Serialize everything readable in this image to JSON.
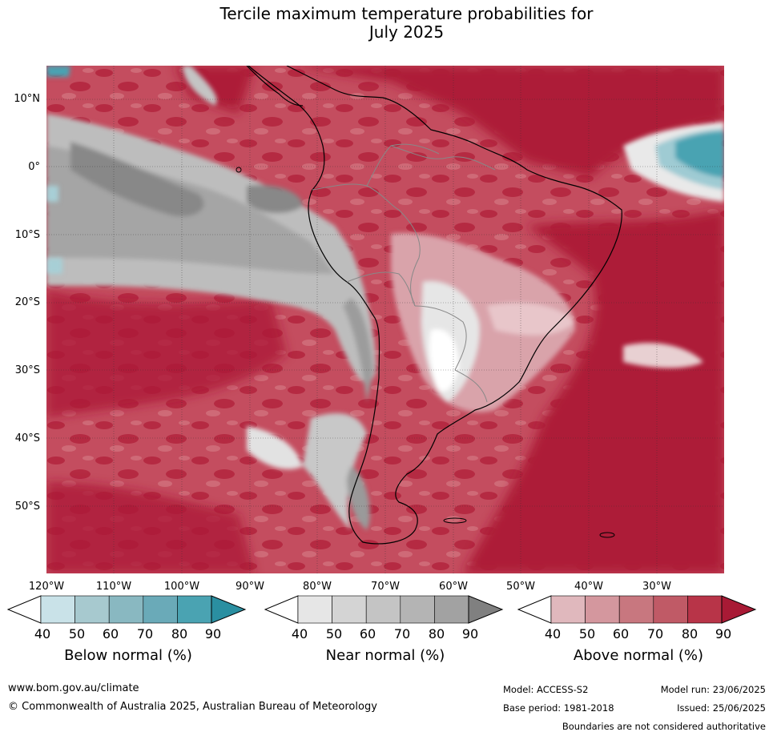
{
  "title": {
    "line1": "Tercile maximum temperature probabilities for",
    "line2": "July 2025"
  },
  "map": {
    "lat_labels": [
      "10°N",
      "0°",
      "10°S",
      "20°S",
      "30°S",
      "40°S",
      "50°S"
    ],
    "lon_labels": [
      "120°W",
      "110°W",
      "100°W",
      "90°W",
      "80°W",
      "70°W",
      "60°W",
      "50°W",
      "40°W",
      "30°W"
    ],
    "gridlines": true,
    "dominant_category": "Above normal",
    "below_normal_regions": [
      "North-east tropical Atlantic near equator",
      "Far north-west Pacific corner"
    ],
    "near_normal_regions": [
      "Eastern equatorial/south-east Pacific band",
      "Peru-Chile coast",
      "Southern Andes / Patagonia"
    ]
  },
  "legend": {
    "ticks": [
      "40",
      "50",
      "60",
      "70",
      "80",
      "90"
    ],
    "below": {
      "title": "Below normal (%)",
      "colors": [
        "#ffffff",
        "#c9e2e8",
        "#a7c9cf",
        "#89b8c1",
        "#6aaab8",
        "#4aa3b2",
        "#2a8fa1"
      ]
    },
    "near": {
      "title": "Near normal (%)",
      "colors": [
        "#ffffff",
        "#e6e6e6",
        "#d4d4d4",
        "#c4c4c4",
        "#b4b4b4",
        "#a2a2a2",
        "#808080"
      ]
    },
    "above": {
      "title": "Above normal (%)",
      "colors": [
        "#ffffff",
        "#e0b8bd",
        "#d4979e",
        "#c8777f",
        "#c05a66",
        "#b83448",
        "#a81a35"
      ]
    }
  },
  "footer": {
    "url": "www.bom.gov.au/climate",
    "copyright": "© Commonwealth of Australia 2025, Australian Bureau of Meteorology",
    "model": "Model: ACCESS-S2",
    "base_period": "Base period: 1981-2018",
    "model_run": "Model run: 23/06/2025",
    "issued": "Issued: 25/06/2025",
    "disclaimer": "Boundaries are not considered authoritative"
  }
}
